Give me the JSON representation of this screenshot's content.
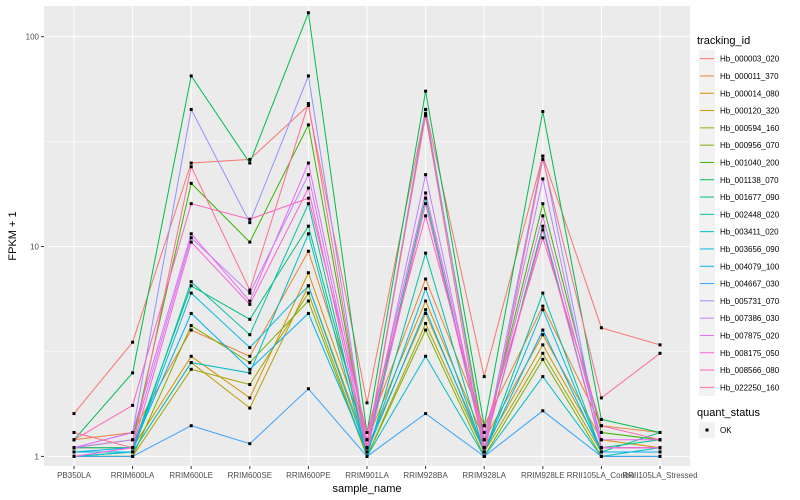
{
  "chart_data": {
    "type": "line",
    "xlabel": "sample_name",
    "ylabel": "FPKM + 1",
    "y_scale": "log10",
    "ylim": [
      0.9,
      140
    ],
    "y_ticks": [
      {
        "value": 1,
        "label": "1"
      },
      {
        "value": 10,
        "label": "10"
      },
      {
        "value": 100,
        "label": "100"
      }
    ],
    "categories": [
      "PB350LA",
      "RRIM600LA",
      "RRIM600LE",
      "RRIM600SE",
      "RRIM600PE",
      "RRIM901LA",
      "RRIM928BA",
      "RRIM928LA",
      "RRIM928LE",
      "RRII105LA_Control",
      "RRII105LA_Stressed"
    ],
    "grid": true,
    "background": "#ebebeb",
    "legend": {
      "position": "right",
      "title": "tracking_id",
      "shape_title": "quant_status",
      "shape_label": "OK"
    },
    "series": [
      {
        "name": "Hb_000003_020",
        "color": "#F8766D",
        "values": [
          1.6,
          3.5,
          25,
          26,
          47,
          1.8,
          45,
          2.4,
          27,
          4.1,
          3.4
        ]
      },
      {
        "name": "Hb_000011_370",
        "color": "#EA8331",
        "values": [
          1.2,
          1.3,
          4.0,
          3.0,
          9.5,
          1.3,
          7.0,
          1.4,
          5.2,
          1.4,
          1.3
        ]
      },
      {
        "name": "Hb_000014_080",
        "color": "#D89000",
        "values": [
          1.1,
          1.1,
          3.0,
          1.9,
          7.5,
          1.2,
          5.5,
          1.2,
          3.8,
          1.2,
          1.1
        ]
      },
      {
        "name": "Hb_000120_320",
        "color": "#C09B00",
        "values": [
          1.05,
          1.05,
          2.8,
          1.7,
          6.5,
          1.1,
          4.8,
          1.1,
          3.4,
          1.1,
          1.1
        ]
      },
      {
        "name": "Hb_000594_160",
        "color": "#A3A500",
        "values": [
          1.0,
          1.0,
          2.6,
          2.2,
          6.0,
          1.0,
          4.3,
          1.05,
          3.1,
          1.05,
          1.05
        ]
      },
      {
        "name": "Hb_000956_070",
        "color": "#7CAE00",
        "values": [
          1.0,
          1.0,
          4.2,
          2.8,
          5.5,
          1.0,
          4.0,
          1.0,
          2.9,
          1.0,
          1.0
        ]
      },
      {
        "name": "Hb_001040_200",
        "color": "#39B600",
        "values": [
          1.1,
          1.2,
          20,
          10.5,
          38,
          1.1,
          43,
          1.2,
          16,
          1.3,
          1.2
        ]
      },
      {
        "name": "Hb_001138_070",
        "color": "#00BB4E",
        "values": [
          1.2,
          2.5,
          65,
          25,
          130,
          1.3,
          55,
          1.4,
          44,
          1.5,
          1.3
        ]
      },
      {
        "name": "Hb_001677_090",
        "color": "#00BF7D",
        "values": [
          1.1,
          1.1,
          6.5,
          4.5,
          12.5,
          1.1,
          17,
          1.1,
          12.5,
          1.1,
          1.2
        ]
      },
      {
        "name": "Hb_002448_020",
        "color": "#00C1A3",
        "values": [
          1.0,
          1.05,
          6.8,
          3.8,
          16,
          1.0,
          9.3,
          1.05,
          6.0,
          1.05,
          1.3
        ]
      },
      {
        "name": "Hb_003411_020",
        "color": "#00BFC4",
        "values": [
          1.0,
          1.05,
          2.8,
          2.5,
          11.5,
          1.0,
          3.0,
          1.0,
          2.4,
          1.0,
          1.1
        ]
      },
      {
        "name": "Hb_003656_090",
        "color": "#00BAE0",
        "values": [
          1.05,
          1.05,
          6.0,
          3.3,
          6.5,
          1.05,
          6.3,
          1.05,
          5.0,
          1.05,
          1.05
        ]
      },
      {
        "name": "Hb_004079_100",
        "color": "#00B0F6",
        "values": [
          1.05,
          1.1,
          4.8,
          2.6,
          4.8,
          1.05,
          5.0,
          1.05,
          4.0,
          1.05,
          1.05
        ]
      },
      {
        "name": "Hb_004667_030",
        "color": "#35A2FF",
        "values": [
          1.0,
          1.0,
          1.4,
          1.15,
          2.1,
          1.0,
          1.6,
          1.0,
          1.65,
          1.0,
          1.0
        ]
      },
      {
        "name": "Hb_005731_070",
        "color": "#9590FF",
        "values": [
          1.1,
          1.3,
          45,
          13,
          65,
          1.1,
          45,
          1.1,
          27,
          1.1,
          1.1
        ]
      },
      {
        "name": "Hb_007386_030",
        "color": "#C77CFF",
        "values": [
          1.1,
          1.2,
          11,
          6.0,
          22,
          1.1,
          22,
          1.1,
          21,
          1.1,
          1.1
        ]
      },
      {
        "name": "Hb_007875_020",
        "color": "#E76BF3",
        "values": [
          1.1,
          1.3,
          11.5,
          5.5,
          25,
          1.2,
          18,
          1.2,
          14,
          1.2,
          1.2
        ]
      },
      {
        "name": "Hb_008175_050",
        "color": "#FA62DB",
        "values": [
          1.0,
          1.1,
          10.5,
          5.3,
          19,
          1.05,
          16,
          1.1,
          12,
          1.1,
          1.1
        ]
      },
      {
        "name": "Hb_008566_080",
        "color": "#FF62BC",
        "values": [
          1.2,
          1.75,
          16,
          13.5,
          17,
          1.3,
          14,
          1.3,
          11,
          1.4,
          1.2
        ]
      },
      {
        "name": "Hb_022250_160",
        "color": "#FF6C91",
        "values": [
          1.3,
          1.1,
          24,
          6.2,
          48,
          1.1,
          42,
          1.0,
          26,
          1.9,
          3.1
        ]
      }
    ]
  }
}
